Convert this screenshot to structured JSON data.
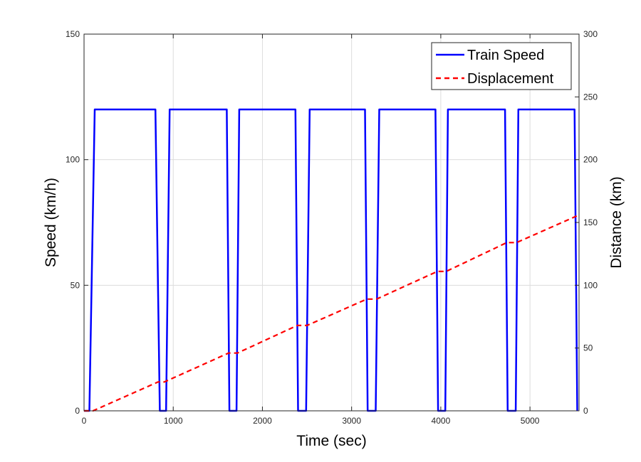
{
  "chart_data": {
    "type": "line",
    "title": "",
    "xlabel": "Time (sec)",
    "ylabel_left": "Speed (km/h)",
    "ylabel_right": "Distance (km)",
    "xlim": [
      0,
      5550
    ],
    "ylim_left": [
      0,
      150
    ],
    "ylim_right": [
      0,
      300
    ],
    "xticks": [
      0,
      1000,
      2000,
      3000,
      4000,
      5000
    ],
    "yticks_left": [
      0,
      50,
      100,
      150
    ],
    "yticks_right": [
      0,
      50,
      100,
      150,
      200,
      250,
      300
    ],
    "grid": true,
    "legend_position": "top-right",
    "series": [
      {
        "name": "Train Speed",
        "axis": "left",
        "color": "#0000ff",
        "style": "solid",
        "x": [
          0,
          60,
          120,
          800,
          850,
          920,
          960,
          1600,
          1630,
          1710,
          1740,
          2370,
          2400,
          2490,
          2530,
          3150,
          3180,
          3270,
          3310,
          3940,
          3970,
          4050,
          4080,
          4720,
          4750,
          4840,
          4870,
          5500,
          5530
        ],
        "y": [
          0,
          0,
          120,
          120,
          0,
          0,
          120,
          120,
          0,
          0,
          120,
          120,
          0,
          0,
          120,
          120,
          0,
          0,
          120,
          120,
          0,
          0,
          120,
          120,
          0,
          0,
          120,
          120,
          0
        ]
      },
      {
        "name": "Displacement",
        "axis": "right",
        "color": "#ff0000",
        "style": "dashed",
        "x": [
          0,
          100,
          830,
          900,
          1620,
          1720,
          2390,
          2500,
          3170,
          3280,
          3960,
          4060,
          4740,
          4850,
          5550
        ],
        "y": [
          0,
          0,
          23,
          23,
          46,
          46,
          68,
          68,
          89,
          89,
          111,
          111,
          134,
          134,
          156
        ]
      }
    ]
  }
}
